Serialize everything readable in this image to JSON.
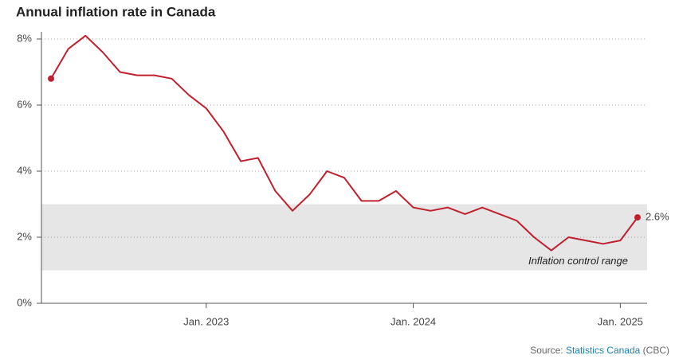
{
  "chart_data": {
    "type": "line",
    "title": "Annual inflation rate in Canada",
    "categories": [
      null,
      null,
      null,
      null,
      null,
      null,
      null,
      null,
      null,
      "Jan. 2023",
      null,
      null,
      null,
      null,
      null,
      null,
      null,
      null,
      null,
      null,
      null,
      "Jan. 2024",
      null,
      null,
      null,
      null,
      null,
      null,
      null,
      null,
      null,
      null,
      null,
      "Jan. 2025",
      null
    ],
    "series": [
      {
        "name": "Annual inflation rate",
        "color": "#c0202e",
        "values": [
          6.8,
          7.7,
          8.1,
          7.6,
          7.0,
          6.9,
          6.9,
          6.8,
          6.3,
          5.9,
          5.2,
          4.3,
          4.4,
          3.4,
          2.8,
          3.3,
          4.0,
          3.8,
          3.1,
          3.1,
          3.4,
          2.9,
          2.8,
          2.9,
          2.7,
          2.9,
          2.7,
          2.5,
          2.0,
          1.6,
          2.0,
          1.9,
          1.8,
          1.9,
          2.6
        ],
        "value_labels": [
          null,
          null,
          null,
          null,
          null,
          null,
          null,
          null,
          null,
          null,
          null,
          null,
          null,
          null,
          null,
          null,
          null,
          null,
          null,
          null,
          null,
          null,
          null,
          null,
          null,
          null,
          null,
          null,
          null,
          null,
          null,
          null,
          null,
          null,
          "2.6%"
        ]
      }
    ],
    "ylim": [
      0,
      8
    ],
    "yticks": [
      {
        "value": 0,
        "label": "0%"
      },
      {
        "value": 2,
        "label": "2%"
      },
      {
        "value": 4,
        "label": "4%"
      },
      {
        "value": 6,
        "label": "6%"
      },
      {
        "value": 8,
        "label": "8%"
      }
    ],
    "grid": true,
    "band": {
      "range": [
        1,
        3
      ],
      "label": "Inflation control range",
      "color": "#e6e6e6"
    },
    "source": {
      "prefix": "Source:",
      "link": "Statistics Canada",
      "suffix": "(CBC)"
    }
  }
}
